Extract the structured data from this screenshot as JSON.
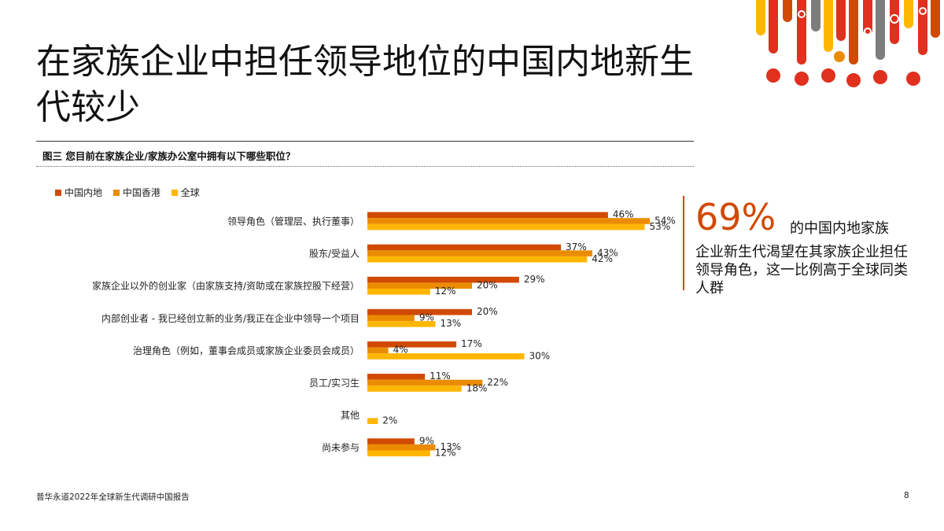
{
  "slide": {
    "title": "在家族企业中担任领导地位的中国内地新生代较少",
    "footer": "普华永道2022年全球新生代调研中国报告",
    "page_number": "8"
  },
  "figure": {
    "caption": "图三 您目前在家族企业/家族办公室中拥有以下哪些职位？"
  },
  "callout": {
    "big_number": "69%",
    "headline": "的中国内地家族",
    "text": "企业新生代渴望在其家族企业担任领导角色，这一比例高于全球同类人群"
  },
  "colors": {
    "mainland": "#d04a02",
    "hongkong": "#eb8c00",
    "global": "#ffb600",
    "accent_red": "#e0301e",
    "decor_grey": "#7d7d7d"
  },
  "chart_data": {
    "type": "bar",
    "orientation": "horizontal",
    "categories": [
      "领导角色（管理层、执行董事）",
      "股东/受益人",
      "家族企业以外的创业家（由家族支持/资助或在家族控股下经营）",
      "内部创业者 - 我已经创立新的业务/我正在企业中领导一个项目",
      "治理角色（例如，董事会成员或家族企业委员会成员）",
      "员工/实习生",
      "其他",
      "尚未参与"
    ],
    "series": [
      {
        "name": "中国内地",
        "values": [
          46,
          37,
          29,
          20,
          17,
          11,
          null,
          9
        ]
      },
      {
        "name": "中国香港",
        "values": [
          54,
          43,
          20,
          9,
          4,
          22,
          null,
          13
        ]
      },
      {
        "name": "全球",
        "values": [
          53,
          42,
          12,
          13,
          30,
          18,
          2,
          12
        ]
      }
    ],
    "value_suffix": "%",
    "legend_position": "top-left",
    "grid": false
  }
}
